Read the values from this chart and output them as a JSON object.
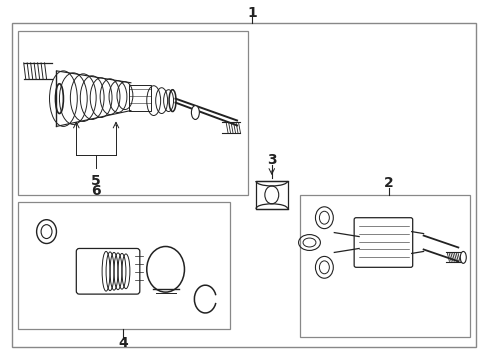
{
  "bg_color": "#ffffff",
  "border_color": "#555555",
  "line_color": "#222222",
  "fig_w": 4.89,
  "fig_h": 3.6,
  "dpi": 100,
  "font_size": 9,
  "font_size_label": 10
}
